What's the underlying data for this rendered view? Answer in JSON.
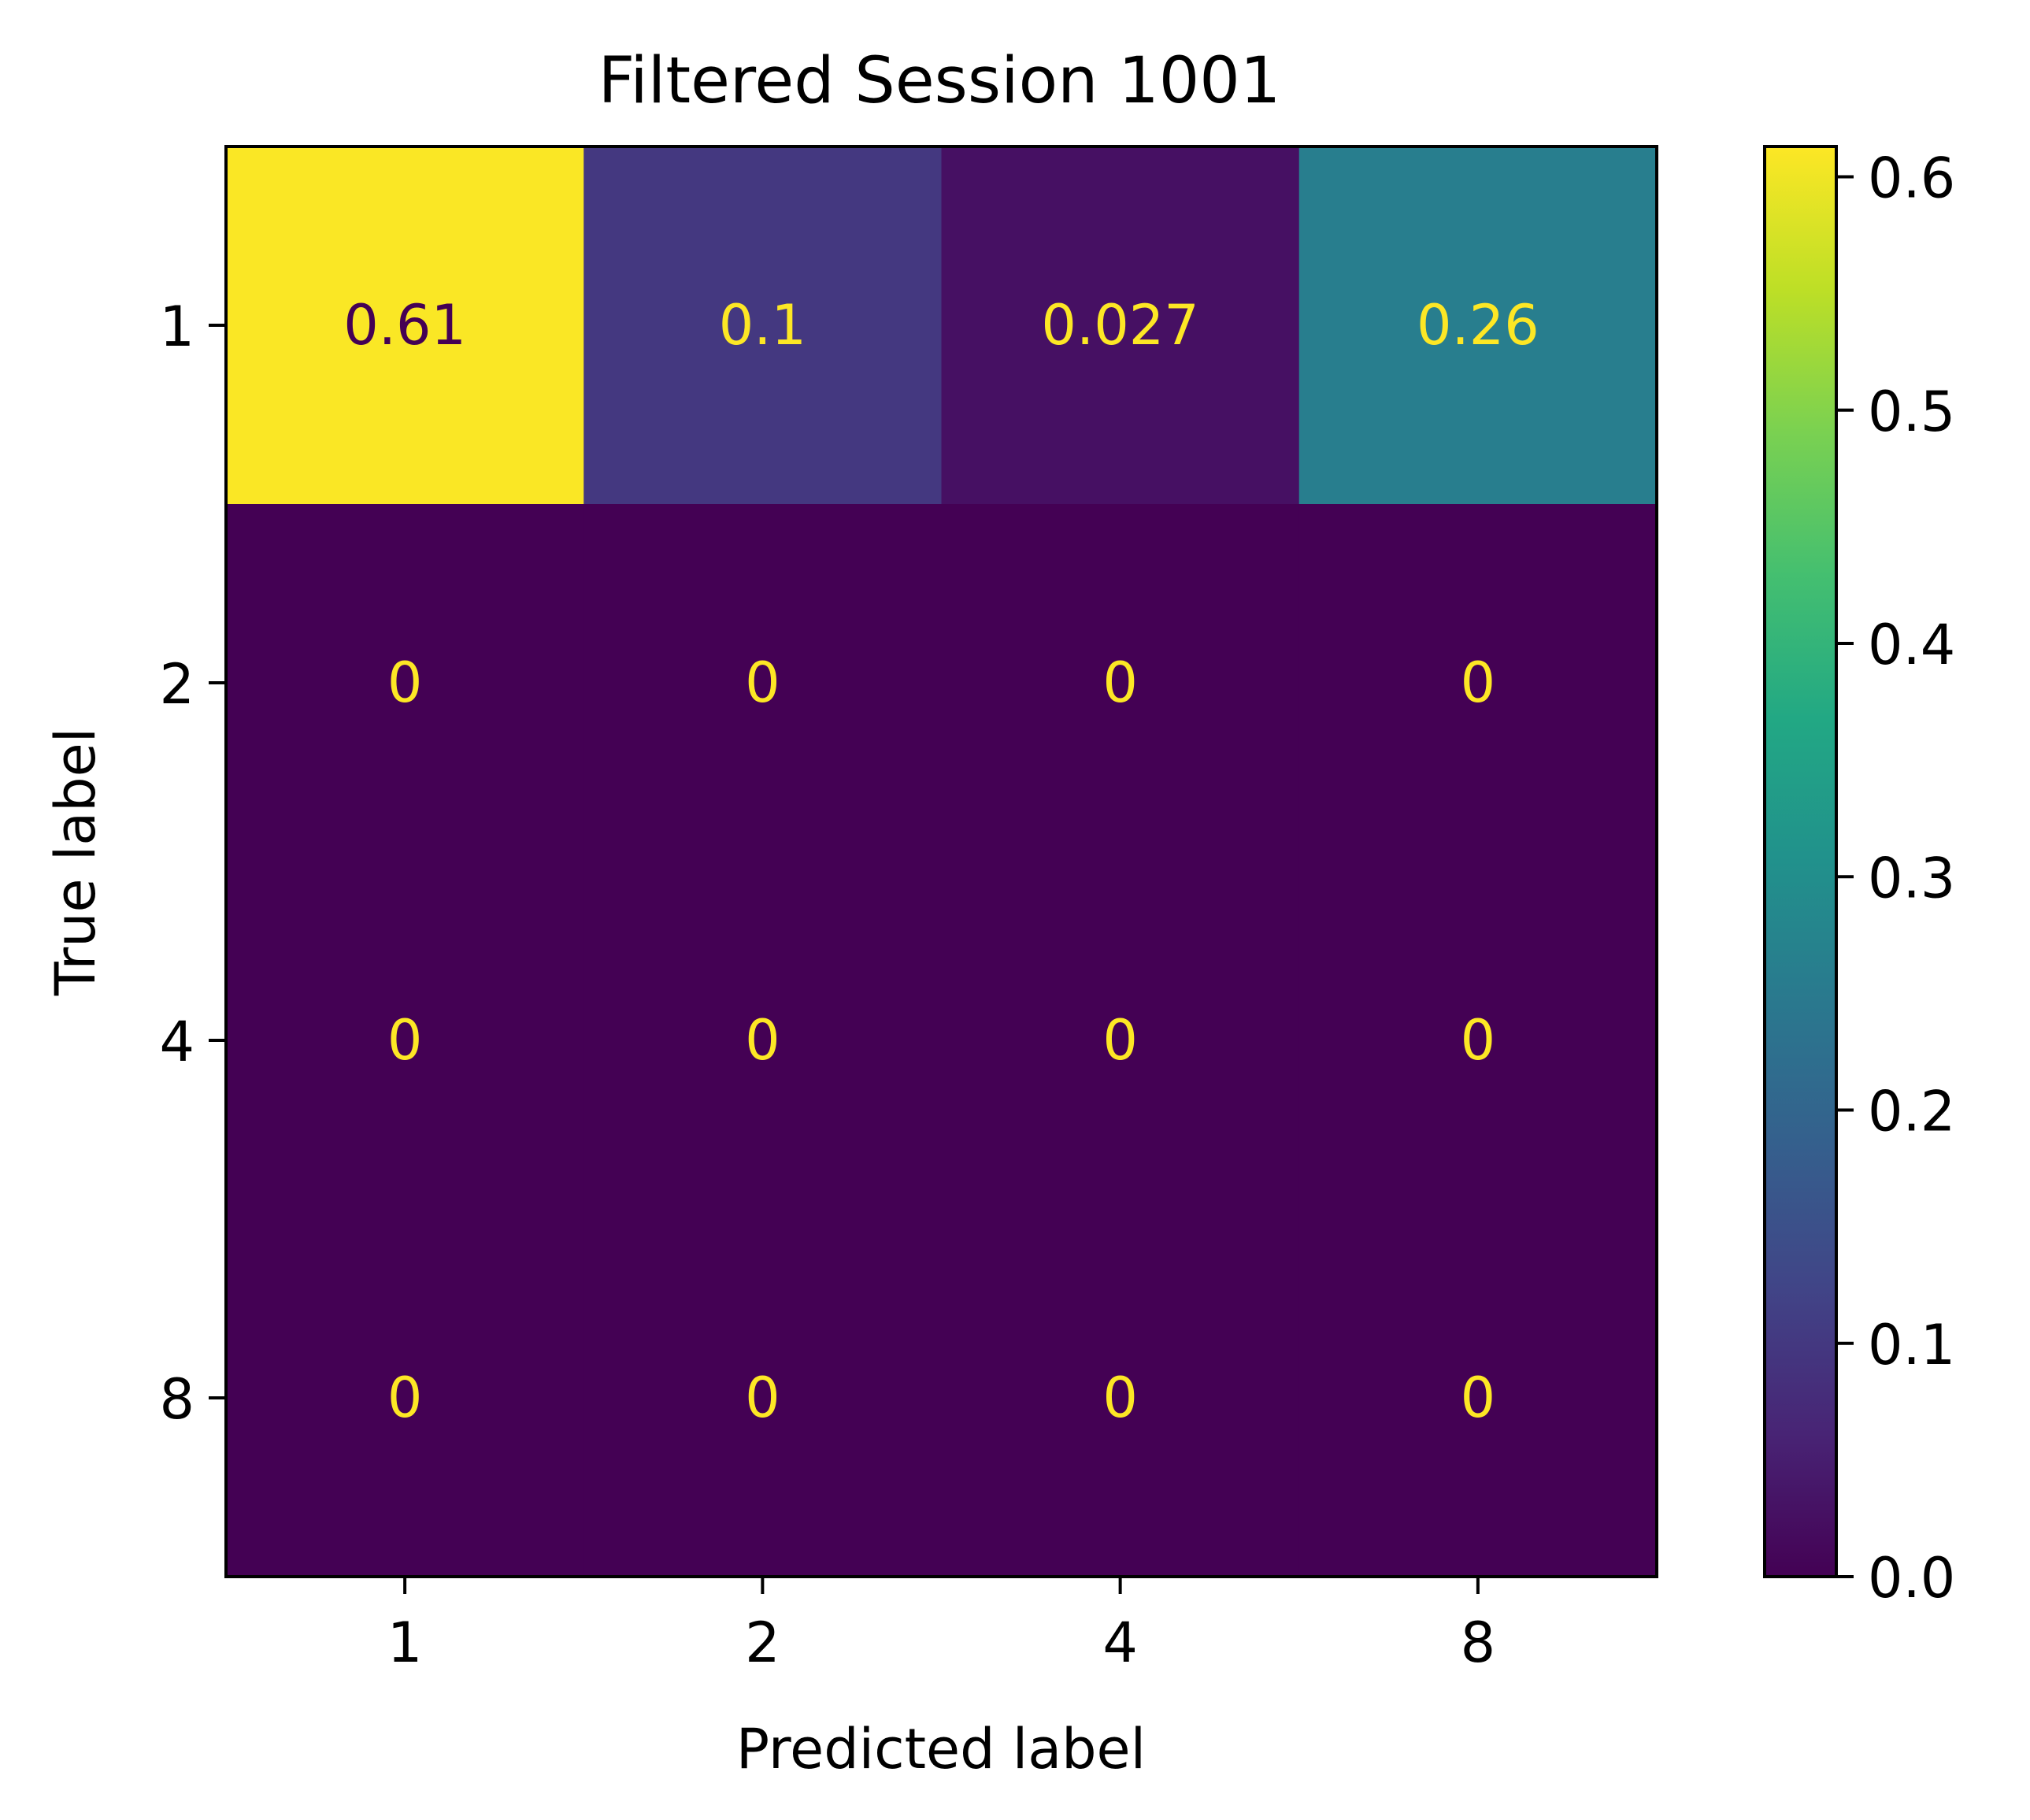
{
  "chart_data": {
    "type": "heatmap",
    "title": "Filtered Session 1001",
    "xlabel": "Predicted label",
    "ylabel": "True label",
    "x_categories": [
      "1",
      "2",
      "4",
      "8"
    ],
    "y_categories": [
      "1",
      "2",
      "4",
      "8"
    ],
    "values": [
      [
        0.61,
        0.1,
        0.027,
        0.26
      ],
      [
        0,
        0,
        0,
        0
      ],
      [
        0,
        0,
        0,
        0
      ],
      [
        0,
        0,
        0,
        0
      ]
    ],
    "value_labels": [
      [
        "0.61",
        "0.1",
        "0.027",
        "0.26"
      ],
      [
        "0",
        "0",
        "0",
        "0"
      ],
      [
        "0",
        "0",
        "0",
        "0"
      ],
      [
        "0",
        "0",
        "0",
        "0"
      ]
    ],
    "colorbar": {
      "range": [
        0.0,
        0.613
      ],
      "ticks": [
        0.0,
        0.1,
        0.2,
        0.3,
        0.4,
        0.5,
        0.6
      ],
      "tick_labels": [
        "0.0",
        "0.1",
        "0.2",
        "0.3",
        "0.4",
        "0.5",
        "0.6"
      ],
      "colormap": "viridis"
    },
    "grid": false,
    "colors": {
      "text_on_dark": "#fde725",
      "text_on_light": "#440154"
    }
  }
}
